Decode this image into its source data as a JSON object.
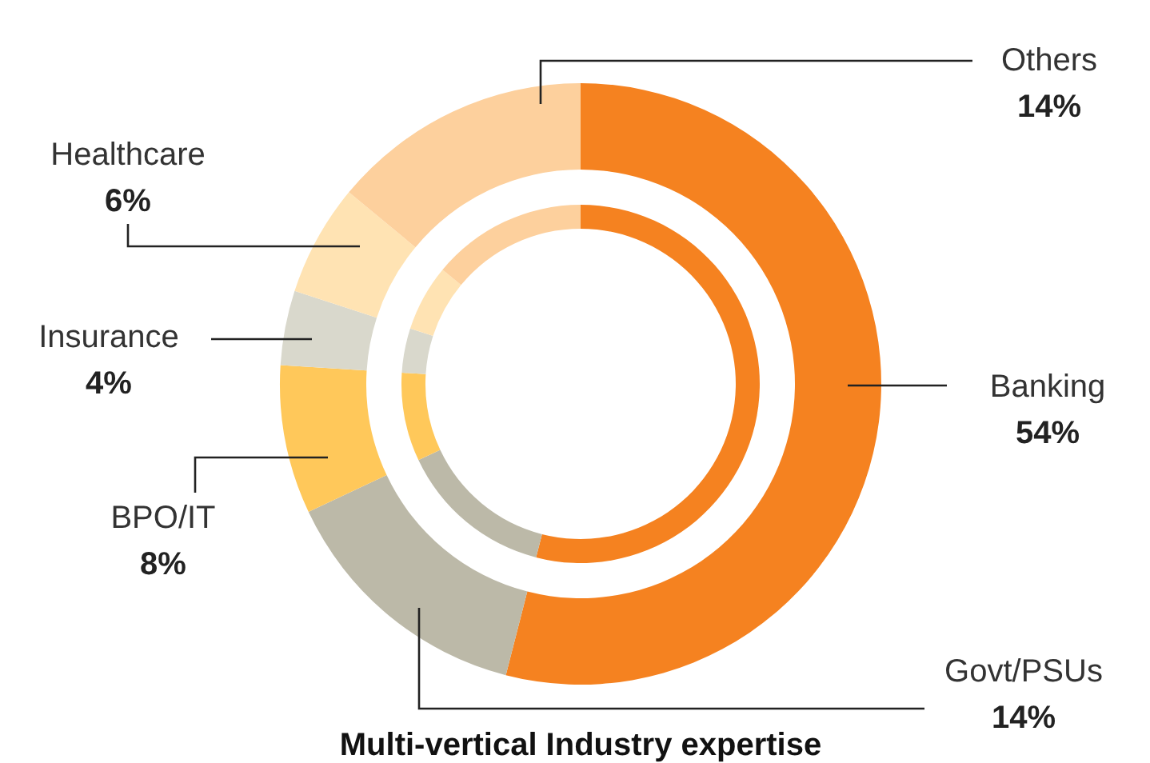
{
  "chart_data": {
    "type": "donut",
    "title": "Multi-vertical Industry expertise",
    "categories": [
      "Banking",
      "Govt/PSUs",
      "BPO/IT",
      "Insurance",
      "Healthcare",
      "Others"
    ],
    "colors": [
      "#f58220",
      "#bcb9a8",
      "#ffc85a",
      "#d9d8cc",
      "#ffe3b3",
      "#fdd09d"
    ],
    "series": [
      {
        "values": [
          54,
          14,
          8,
          4,
          6,
          14
        ],
        "value_labels": [
          "54%",
          "14%",
          "8%",
          "4%",
          "6%",
          "14%"
        ]
      },
      {
        "values": [
          54,
          14,
          8,
          4,
          6,
          14
        ]
      }
    ]
  }
}
